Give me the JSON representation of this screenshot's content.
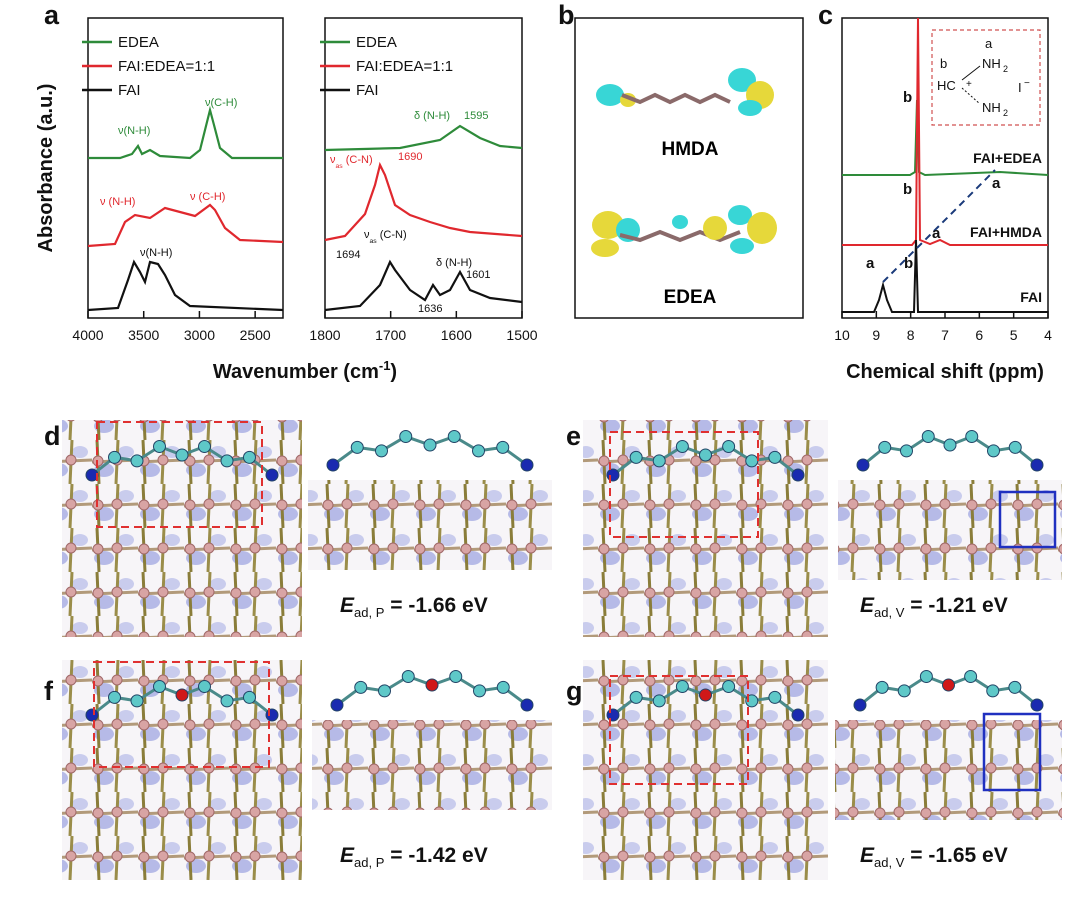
{
  "panel_a": {
    "label": "a",
    "ylabel": "Absorbance (a.u.)",
    "xlabel": {
      "text": "Wavenumber (cm",
      "sup": "-1",
      "end": ")"
    },
    "legend": [
      {
        "name": "EDEA",
        "color": "#2e8b3a"
      },
      {
        "name": "FAI:EDEA=1:1",
        "color": "#e0282e"
      },
      {
        "name": "FAI",
        "color": "#111111"
      }
    ],
    "left": {
      "xlim": [
        4000,
        2250
      ],
      "xticks": [
        4000,
        3500,
        3000,
        2500
      ],
      "annotations": [
        [
          "ν(N-H)",
          "ν(C-H)"
        ],
        [
          "ν (N-H)",
          "ν (C-H)"
        ],
        [
          "ν(N-H)"
        ]
      ]
    },
    "right": {
      "xlim": [
        1800,
        1500
      ],
      "xticks": [
        1800,
        1700,
        1600,
        1500
      ],
      "annotations": [
        [
          "δ (N-H)",
          1595
        ],
        [
          {
            "symbol": "ν",
            "sub": "as",
            "text": " (C-N)"
          },
          1690
        ],
        [
          {
            "symbol": "ν",
            "sub": "as",
            "text": " (C-N)"
          },
          1694,
          1636,
          "δ (N-H)",
          1601
        ]
      ]
    }
  },
  "panel_b": {
    "label": "b",
    "molecules": [
      "HMDA",
      "EDEA"
    ]
  },
  "panel_c": {
    "label": "c",
    "xlabel": "Chemical shift (ppm)",
    "xlim": [
      10,
      4
    ],
    "xticks": [
      10,
      9,
      8,
      7,
      6,
      5,
      4
    ],
    "traces": [
      {
        "name": "FAI+EDEA",
        "color": "#2e8b3a"
      },
      {
        "name": "FAI+HMDA",
        "color": "#e0282e"
      },
      {
        "name": "FAI",
        "color": "#111111"
      }
    ],
    "peak_labels": [
      "b",
      "a",
      "b",
      "a",
      "a",
      "b"
    ],
    "inset": [
      "a",
      "b",
      "HC",
      "+",
      "NH",
      "2",
      "NH",
      "2",
      "I",
      "−"
    ]
  },
  "panels_dg": [
    {
      "label": "d",
      "energy": {
        "symbol": "E",
        "sub": "ad, P",
        "text": " = -1.66 eV"
      }
    },
    {
      "label": "e",
      "energy": {
        "symbol": "E",
        "sub": "ad, V",
        "text": " = -1.21 eV"
      }
    },
    {
      "label": "f",
      "energy": {
        "symbol": "E",
        "sub": "ad, P",
        "text": " = -1.42 eV"
      }
    },
    {
      "label": "g",
      "energy": {
        "symbol": "E",
        "sub": "ad, V",
        "text": " = -1.65 eV"
      }
    }
  ]
}
